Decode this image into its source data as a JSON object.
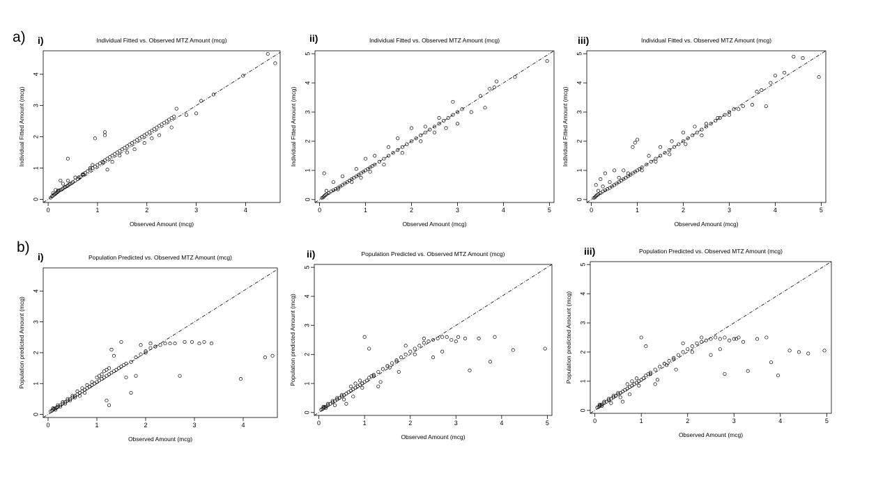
{
  "row_labels": {
    "a": "a)",
    "b": "b)"
  },
  "panel_labels": {
    "i": "i)",
    "ii": "ii)",
    "iii": "iii)"
  },
  "chart_data": [
    {
      "type": "scatter",
      "panel": "a-i",
      "title": "Individual Fitted vs. Observed MTZ Amount (mcg)",
      "xlabel": "Observed  Amount (mcg)",
      "ylabel": "Individual Fitted  Amount (mcg)",
      "xlim": [
        -0.1,
        4.7
      ],
      "ylim": [
        -0.1,
        4.75
      ],
      "xticks": [
        0,
        1,
        2,
        3,
        4
      ],
      "yticks": [
        0,
        1,
        2,
        3,
        4
      ],
      "identity_line": true,
      "x": [
        0.05,
        0.08,
        0.1,
        0.12,
        0.15,
        0.18,
        0.2,
        0.22,
        0.25,
        0.28,
        0.3,
        0.33,
        0.35,
        0.38,
        0.4,
        0.43,
        0.45,
        0.48,
        0.5,
        0.55,
        0.6,
        0.62,
        0.65,
        0.7,
        0.72,
        0.75,
        0.8,
        0.85,
        0.9,
        0.95,
        1.0,
        1.05,
        1.1,
        1.12,
        1.15,
        1.2,
        1.25,
        1.3,
        1.35,
        1.4,
        1.45,
        1.5,
        1.55,
        1.6,
        1.65,
        1.7,
        1.75,
        1.8,
        1.85,
        1.9,
        1.95,
        2.0,
        2.05,
        2.1,
        2.15,
        2.2,
        2.25,
        2.3,
        2.35,
        2.4,
        2.45,
        2.5,
        2.55,
        2.6,
        2.8,
        3.0,
        3.1,
        3.35,
        3.95,
        4.45,
        4.6,
        0.1,
        0.15,
        0.3,
        0.4,
        0.55,
        0.7,
        0.85,
        0.95,
        1.15,
        1.15,
        1.3,
        0.4,
        0.25,
        0.9,
        1.2,
        1.45,
        1.6,
        1.75,
        1.95,
        2.1,
        2.25,
        2.5,
        0.2,
        0.35
      ],
      "y": [
        0.05,
        0.1,
        0.12,
        0.15,
        0.18,
        0.22,
        0.25,
        0.28,
        0.3,
        0.32,
        0.35,
        0.38,
        0.4,
        0.42,
        0.45,
        0.48,
        0.5,
        0.52,
        0.55,
        0.6,
        0.65,
        0.7,
        0.72,
        0.78,
        0.8,
        0.85,
        0.9,
        0.95,
        1.0,
        1.05,
        1.1,
        1.15,
        1.2,
        1.18,
        1.25,
        1.3,
        1.35,
        1.4,
        1.45,
        1.5,
        1.55,
        1.6,
        1.65,
        1.7,
        1.75,
        1.8,
        1.85,
        1.9,
        1.95,
        2.0,
        2.05,
        2.1,
        2.15,
        2.2,
        2.25,
        2.3,
        2.35,
        2.4,
        2.45,
        2.5,
        2.55,
        2.6,
        2.65,
        2.9,
        2.7,
        2.75,
        3.15,
        3.35,
        3.95,
        4.65,
        4.35,
        0.2,
        0.3,
        0.5,
        0.6,
        0.7,
        0.8,
        1.0,
        1.95,
        2.15,
        2.05,
        1.2,
        1.3,
        0.6,
        1.1,
        0.95,
        1.4,
        1.5,
        1.6,
        1.8,
        1.95,
        2.05,
        2.3,
        0.28,
        0.4
      ]
    },
    {
      "type": "scatter",
      "panel": "a-ii",
      "title": "Individual Fitted vs. Observed MTZ Amount (mcg)",
      "xlabel": "Observed  Amount (mcg)",
      "ylabel": "Individual Fitted  Amount (mcg)",
      "xlim": [
        -0.1,
        5.1
      ],
      "ylim": [
        -0.1,
        5.1
      ],
      "xticks": [
        0,
        1,
        2,
        3,
        4,
        5
      ],
      "yticks": [
        0,
        1,
        2,
        3,
        4,
        5
      ],
      "identity_line": true,
      "x": [
        0.05,
        0.08,
        0.1,
        0.12,
        0.15,
        0.2,
        0.25,
        0.3,
        0.35,
        0.4,
        0.45,
        0.5,
        0.55,
        0.6,
        0.65,
        0.7,
        0.75,
        0.8,
        0.85,
        0.9,
        0.95,
        1.0,
        1.05,
        1.1,
        1.15,
        1.2,
        1.3,
        1.4,
        1.5,
        1.6,
        1.7,
        1.8,
        1.9,
        2.0,
        2.1,
        2.2,
        2.3,
        2.4,
        2.5,
        2.6,
        2.7,
        2.8,
        2.9,
        3.0,
        3.1,
        3.3,
        3.5,
        3.6,
        3.7,
        3.8,
        3.85,
        4.25,
        4.95,
        0.1,
        0.3,
        0.5,
        0.8,
        1.0,
        1.2,
        1.5,
        1.7,
        2.0,
        2.3,
        2.6,
        2.9,
        0.15,
        0.4,
        0.7,
        0.9,
        1.1,
        1.4,
        1.8,
        2.2,
        2.5,
        2.75,
        3.0
      ],
      "y": [
        0.05,
        0.08,
        0.12,
        0.15,
        0.18,
        0.22,
        0.28,
        0.32,
        0.36,
        0.4,
        0.45,
        0.5,
        0.55,
        0.6,
        0.65,
        0.7,
        0.75,
        0.8,
        0.85,
        0.9,
        0.95,
        1.0,
        1.05,
        1.1,
        1.15,
        1.2,
        1.3,
        1.4,
        1.5,
        1.6,
        1.7,
        1.8,
        1.9,
        2.0,
        2.1,
        2.2,
        2.3,
        2.4,
        2.5,
        2.6,
        2.7,
        2.8,
        2.9,
        3.0,
        3.1,
        3.0,
        3.55,
        3.15,
        3.8,
        3.85,
        4.05,
        4.2,
        4.75,
        0.9,
        0.6,
        0.8,
        1.05,
        1.4,
        1.5,
        1.8,
        2.1,
        2.45,
        2.5,
        2.8,
        3.35,
        0.3,
        0.35,
        0.6,
        0.75,
        0.95,
        1.2,
        1.6,
        2.0,
        2.3,
        2.45,
        2.6
      ]
    },
    {
      "type": "scatter",
      "panel": "a-iii",
      "title": "Individual Fitted vs. Observed MTZ Amount (mcg)",
      "xlabel": "Observed  Amount (mcg)",
      "ylabel": "Individual Fitted  Amount (mcg)",
      "xlim": [
        -0.1,
        5.1
      ],
      "ylim": [
        -0.1,
        5.1
      ],
      "xticks": [
        0,
        1,
        2,
        3,
        4,
        5
      ],
      "yticks": [
        0,
        1,
        2,
        3,
        4,
        5
      ],
      "identity_line": true,
      "x": [
        0.05,
        0.08,
        0.1,
        0.12,
        0.15,
        0.2,
        0.25,
        0.3,
        0.35,
        0.4,
        0.45,
        0.5,
        0.55,
        0.6,
        0.65,
        0.7,
        0.75,
        0.8,
        0.85,
        0.9,
        0.95,
        1.0,
        1.05,
        1.1,
        1.2,
        1.3,
        1.4,
        1.5,
        1.6,
        1.7,
        1.8,
        1.9,
        2.0,
        2.1,
        2.2,
        2.3,
        2.4,
        2.5,
        2.6,
        2.7,
        2.8,
        2.9,
        3.0,
        3.1,
        3.2,
        3.3,
        3.5,
        3.6,
        3.7,
        3.8,
        3.9,
        4.0,
        4.2,
        4.4,
        4.6,
        4.95,
        0.1,
        0.2,
        0.3,
        0.5,
        0.7,
        0.9,
        0.95,
        1.0,
        1.25,
        1.5,
        1.75,
        2.0,
        2.25,
        2.5,
        2.75,
        3.0,
        0.15,
        0.25,
        0.4,
        0.6,
        0.8,
        1.1,
        1.4,
        1.7,
        2.05,
        2.4
      ],
      "y": [
        0.05,
        0.08,
        0.12,
        0.15,
        0.18,
        0.22,
        0.28,
        0.32,
        0.36,
        0.4,
        0.45,
        0.5,
        0.55,
        0.6,
        0.65,
        0.7,
        0.75,
        0.8,
        0.85,
        0.9,
        0.95,
        1.0,
        1.05,
        1.1,
        1.2,
        1.3,
        1.4,
        1.5,
        1.6,
        1.7,
        1.8,
        1.9,
        2.0,
        2.1,
        2.2,
        2.3,
        2.4,
        2.5,
        2.6,
        2.7,
        2.8,
        2.9,
        3.0,
        3.1,
        3.1,
        3.2,
        3.25,
        3.7,
        3.75,
        3.2,
        4.0,
        4.25,
        4.35,
        4.9,
        4.85,
        4.2,
        0.5,
        0.7,
        0.9,
        1.0,
        1.0,
        1.8,
        1.95,
        2.05,
        1.5,
        1.8,
        2.0,
        2.3,
        2.5,
        2.6,
        2.8,
        2.9,
        0.3,
        0.45,
        0.6,
        0.75,
        0.9,
        1.0,
        1.3,
        1.55,
        1.9,
        2.2
      ]
    },
    {
      "type": "scatter",
      "panel": "b-i",
      "title": "Population Predicted vs. Observed MTZ Amount (mcg)",
      "xlabel": "Observed  Amount (mcg)",
      "ylabel": "Population predicted  Amount (mcg)",
      "xlim": [
        -0.1,
        4.7
      ],
      "ylim": [
        -0.1,
        4.75
      ],
      "xticks": [
        0,
        1,
        2,
        3,
        4
      ],
      "yticks": [
        0,
        1,
        2,
        3,
        4
      ],
      "identity_line": true,
      "x": [
        0.05,
        0.08,
        0.1,
        0.12,
        0.15,
        0.18,
        0.2,
        0.25,
        0.3,
        0.35,
        0.4,
        0.45,
        0.5,
        0.55,
        0.6,
        0.65,
        0.7,
        0.75,
        0.8,
        0.85,
        0.9,
        0.95,
        1.0,
        1.05,
        1.1,
        1.15,
        1.2,
        1.25,
        1.3,
        1.35,
        1.4,
        1.45,
        1.5,
        1.55,
        1.6,
        1.7,
        1.8,
        1.9,
        2.0,
        2.1,
        2.2,
        2.3,
        2.4,
        2.5,
        2.6,
        2.7,
        2.8,
        2.95,
        3.1,
        3.2,
        3.35,
        3.95,
        4.45,
        4.6,
        0.1,
        0.2,
        0.3,
        0.4,
        0.5,
        0.6,
        0.7,
        0.8,
        0.9,
        1.0,
        1.1,
        1.2,
        1.3,
        1.5,
        1.7,
        1.9,
        2.1,
        0.15,
        0.25,
        0.35,
        0.45,
        0.55,
        0.65,
        0.75,
        0.85,
        0.95,
        1.05,
        1.15,
        1.25,
        1.35,
        1.6,
        1.8,
        2.0,
        2.2,
        1.25,
        1.2
      ],
      "y": [
        0.1,
        0.12,
        0.15,
        0.18,
        0.2,
        0.22,
        0.25,
        0.3,
        0.35,
        0.4,
        0.45,
        0.5,
        0.55,
        0.6,
        0.65,
        0.7,
        0.75,
        0.8,
        0.85,
        0.9,
        0.95,
        1.0,
        1.05,
        1.1,
        1.15,
        1.2,
        1.25,
        1.3,
        1.35,
        1.4,
        1.45,
        1.5,
        1.55,
        1.6,
        1.65,
        1.7,
        1.85,
        1.95,
        2.05,
        2.15,
        2.2,
        2.25,
        2.3,
        2.3,
        2.3,
        1.25,
        2.35,
        2.35,
        2.3,
        2.35,
        2.3,
        1.15,
        1.85,
        1.9,
        0.2,
        0.3,
        0.4,
        0.5,
        0.6,
        0.75,
        0.85,
        0.95,
        1.05,
        1.2,
        1.3,
        1.45,
        2.1,
        2.35,
        0.7,
        2.25,
        2.3,
        0.15,
        0.25,
        0.35,
        0.45,
        0.55,
        0.6,
        0.7,
        0.9,
        1.0,
        1.25,
        1.4,
        1.5,
        1.9,
        1.2,
        1.25,
        2.0,
        2.2,
        0.3,
        0.45
      ]
    },
    {
      "type": "scatter",
      "panel": "b-ii",
      "title": "Population Predicted vs. Observed MTZ Amount (mcg)",
      "xlabel": "Observed  Amount (mcg)",
      "ylabel": "Population predicted  Amount (mcg)",
      "xlim": [
        -0.1,
        5.1
      ],
      "ylim": [
        -0.1,
        5.1
      ],
      "xticks": [
        0,
        1,
        2,
        3,
        4,
        5
      ],
      "yticks": [
        0,
        1,
        2,
        3,
        4,
        5
      ],
      "identity_line": true,
      "x": [
        0.05,
        0.08,
        0.1,
        0.12,
        0.15,
        0.2,
        0.25,
        0.3,
        0.35,
        0.4,
        0.45,
        0.5,
        0.55,
        0.6,
        0.65,
        0.7,
        0.75,
        0.8,
        0.85,
        0.9,
        0.95,
        1.0,
        1.05,
        1.1,
        1.2,
        1.3,
        1.4,
        1.5,
        1.6,
        1.7,
        1.8,
        1.9,
        2.0,
        2.1,
        2.2,
        2.3,
        2.4,
        2.5,
        2.6,
        2.7,
        2.8,
        2.9,
        3.0,
        3.2,
        3.3,
        3.5,
        3.75,
        3.85,
        4.25,
        4.95,
        0.1,
        0.2,
        0.3,
        0.4,
        0.5,
        0.6,
        0.7,
        0.8,
        0.9,
        1.0,
        1.1,
        1.2,
        1.3,
        1.5,
        1.7,
        1.9,
        2.3,
        2.7,
        0.15,
        0.35,
        0.55,
        0.75,
        0.95,
        1.15,
        1.35,
        1.55,
        1.75,
        2.1,
        2.5,
        3.05
      ],
      "y": [
        0.1,
        0.12,
        0.15,
        0.18,
        0.2,
        0.25,
        0.3,
        0.35,
        0.4,
        0.45,
        0.5,
        0.55,
        0.6,
        0.65,
        0.7,
        0.75,
        0.8,
        0.85,
        0.9,
        0.95,
        1.0,
        1.05,
        1.1,
        1.2,
        1.3,
        1.4,
        1.5,
        1.6,
        1.7,
        1.8,
        1.9,
        2.0,
        2.1,
        2.2,
        2.3,
        2.4,
        2.45,
        2.5,
        2.55,
        2.6,
        2.6,
        2.5,
        2.45,
        2.55,
        1.45,
        2.55,
        1.75,
        2.6,
        2.15,
        2.2,
        0.2,
        0.3,
        0.4,
        0.5,
        0.6,
        0.3,
        0.9,
        1.0,
        1.1,
        2.6,
        2.2,
        1.25,
        0.9,
        1.6,
        1.75,
        2.3,
        2.55,
        2.1,
        0.15,
        0.25,
        0.45,
        0.55,
        0.85,
        1.25,
        1.05,
        1.55,
        1.4,
        2.0,
        1.9,
        2.6
      ]
    },
    {
      "type": "scatter",
      "panel": "b-iii",
      "title": "Population Predicted vs. Observed MTZ Amount (mcg)",
      "xlabel": "Observed  Amount (mcg)",
      "ylabel": "Population predicted  Amount (mcg)",
      "xlim": [
        -0.1,
        5.1
      ],
      "ylim": [
        -0.1,
        5.1
      ],
      "xticks": [
        0,
        1,
        2,
        3,
        4,
        5
      ],
      "yticks": [
        0,
        1,
        2,
        3,
        4,
        5
      ],
      "identity_line": true,
      "x": [
        0.05,
        0.08,
        0.1,
        0.12,
        0.15,
        0.2,
        0.25,
        0.3,
        0.35,
        0.4,
        0.45,
        0.5,
        0.55,
        0.6,
        0.65,
        0.7,
        0.75,
        0.8,
        0.85,
        0.9,
        0.95,
        1.0,
        1.05,
        1.1,
        1.2,
        1.3,
        1.4,
        1.5,
        1.6,
        1.7,
        1.8,
        1.9,
        2.0,
        2.1,
        2.2,
        2.3,
        2.4,
        2.5,
        2.6,
        2.7,
        2.8,
        2.9,
        3.0,
        3.1,
        3.2,
        3.3,
        3.5,
        3.7,
        3.8,
        3.95,
        4.2,
        4.4,
        4.6,
        4.95,
        0.1,
        0.2,
        0.3,
        0.4,
        0.5,
        0.6,
        0.7,
        0.8,
        0.9,
        1.0,
        1.1,
        1.2,
        1.3,
        1.5,
        1.7,
        1.9,
        2.3,
        2.7,
        0.15,
        0.35,
        0.55,
        0.75,
        0.95,
        1.15,
        1.35,
        1.55,
        1.75,
        2.1,
        2.5,
        3.05,
        2.8
      ],
      "y": [
        0.1,
        0.12,
        0.15,
        0.18,
        0.2,
        0.25,
        0.3,
        0.35,
        0.4,
        0.45,
        0.5,
        0.55,
        0.6,
        0.65,
        0.7,
        0.75,
        0.8,
        0.85,
        0.9,
        0.95,
        1.0,
        1.05,
        1.1,
        1.2,
        1.3,
        1.4,
        1.5,
        1.6,
        1.7,
        1.8,
        1.9,
        2.0,
        2.1,
        2.2,
        2.3,
        2.35,
        2.4,
        2.45,
        2.5,
        2.45,
        2.5,
        2.4,
        2.45,
        2.5,
        2.35,
        1.35,
        2.45,
        2.5,
        1.65,
        1.2,
        2.05,
        2.0,
        1.95,
        2.05,
        0.2,
        0.3,
        0.4,
        0.5,
        0.6,
        0.3,
        0.9,
        1.0,
        1.1,
        2.5,
        2.2,
        1.25,
        0.9,
        1.6,
        1.75,
        2.3,
        2.5,
        2.1,
        0.15,
        0.25,
        0.45,
        0.55,
        0.85,
        1.25,
        1.05,
        1.55,
        1.4,
        2.0,
        1.9,
        2.45,
        1.25
      ]
    }
  ]
}
